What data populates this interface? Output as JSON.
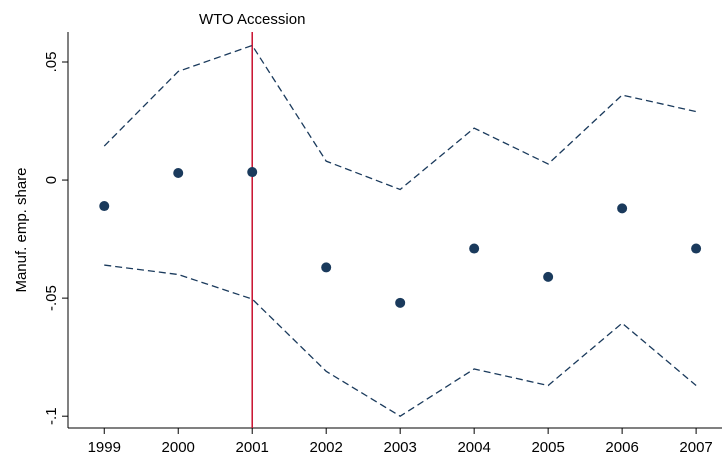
{
  "chart_data": {
    "type": "scatter",
    "y_label": "Manuf. emp. share",
    "x": [
      1999,
      2000,
      2001,
      2002,
      2003,
      2004,
      2005,
      2006,
      2007
    ],
    "series": [
      {
        "kind": "points",
        "color": "#1a3a5c",
        "values": [
          -0.011,
          0.003,
          0.0034,
          -0.037,
          -0.052,
          -0.029,
          -0.041,
          -0.012,
          -0.029
        ]
      },
      {
        "kind": "dashed-line",
        "color": "#1a3a5c",
        "values": [
          0.0144,
          0.046,
          0.057,
          0.008,
          -0.004,
          0.022,
          0.0068,
          0.036,
          0.029
        ]
      },
      {
        "kind": "dashed-line",
        "color": "#1a3a5c",
        "values": [
          -0.036,
          -0.04,
          -0.0504,
          -0.081,
          -0.1,
          -0.08,
          -0.087,
          -0.0606,
          -0.087
        ]
      }
    ],
    "xlim": [
      1998.51,
      2007.35
    ],
    "ylim": [
      -0.105,
      0.0627
    ],
    "xticks": [
      1999,
      2000,
      2001,
      2002,
      2003,
      2004,
      2005,
      2006,
      2007
    ],
    "yticks": [
      {
        "value": -0.1,
        "label": "-.1"
      },
      {
        "value": -0.05,
        "label": "-.05"
      },
      0,
      {
        "value": 0.05,
        "label": ".05"
      }
    ],
    "grid": false,
    "annotation": {
      "text": "WTO Accession",
      "x": 2001,
      "color": "#c8102e"
    }
  }
}
